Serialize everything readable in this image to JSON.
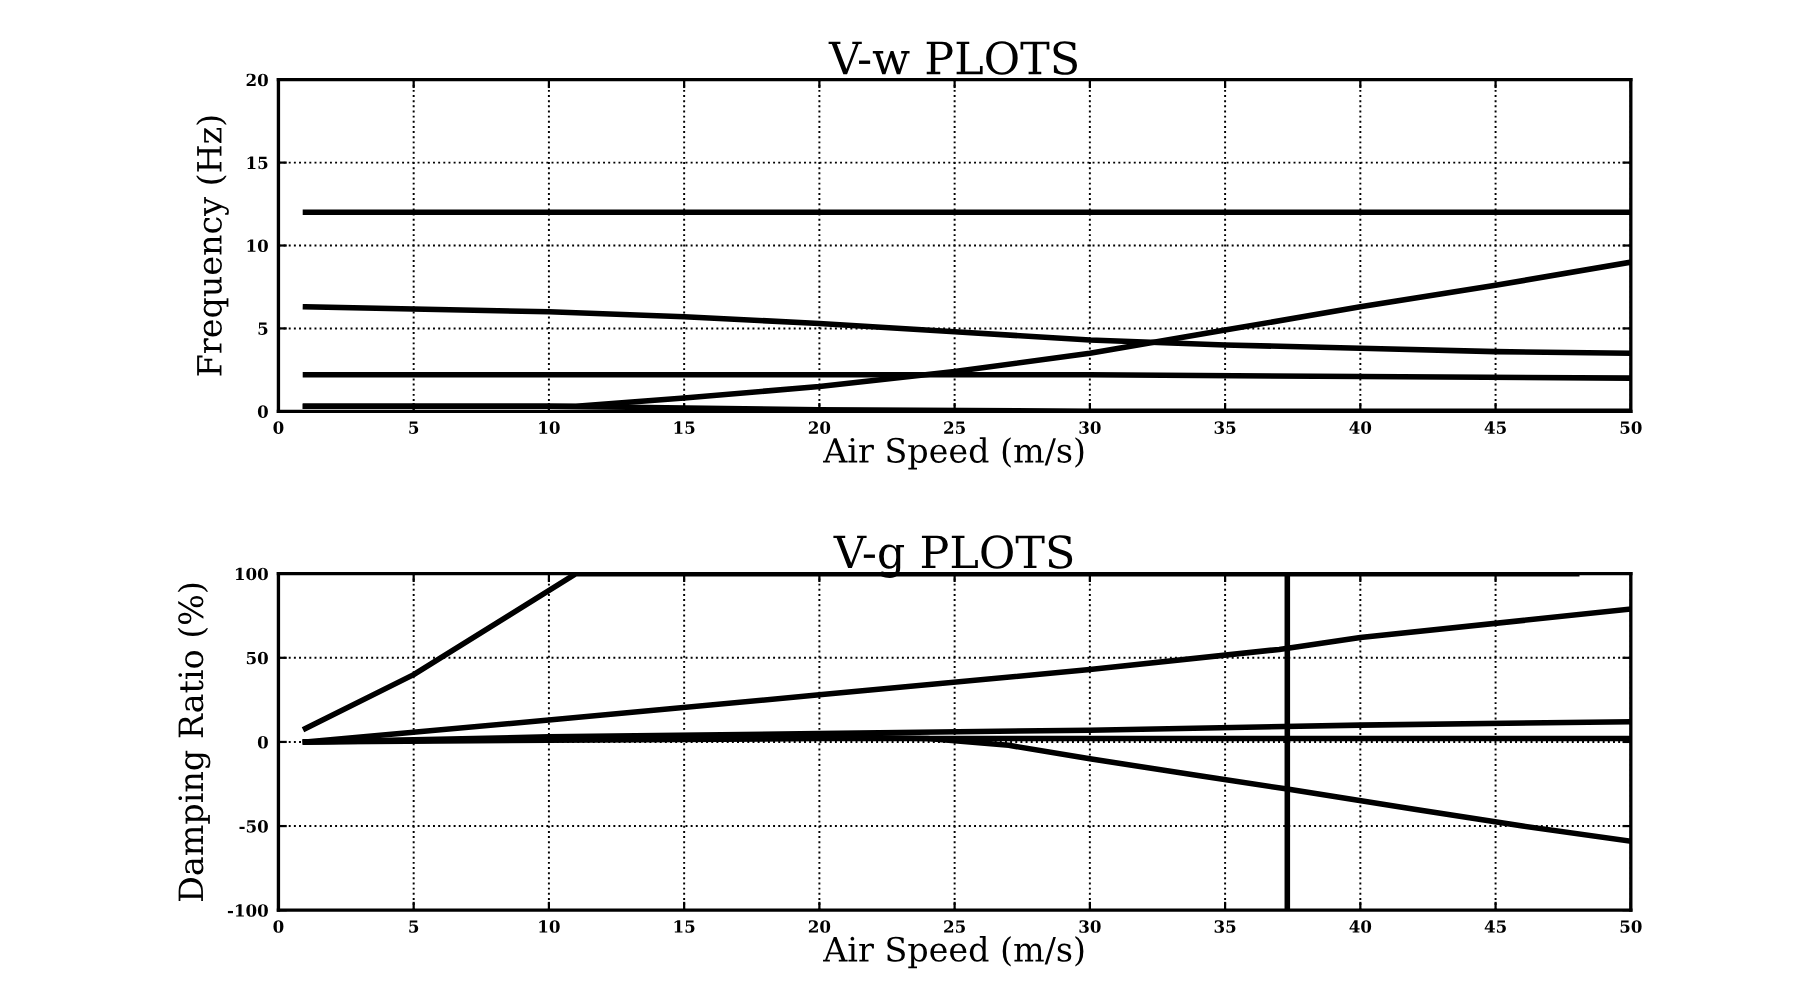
{
  "chart_data": [
    {
      "type": "line",
      "title": "V-w PLOTS",
      "xlabel": "Air Speed (m/s)",
      "ylabel": "Frequency (Hz)",
      "xlim": [
        0,
        50
      ],
      "ylim": [
        0,
        20
      ],
      "xticks": [
        0,
        5,
        10,
        15,
        20,
        25,
        30,
        35,
        40,
        45,
        50
      ],
      "yticks": [
        0,
        5,
        10,
        15,
        20
      ],
      "grid": true,
      "legend": false,
      "line_style": "solid",
      "series": [
        {
          "color": "#000000",
          "x": [
            1,
            50
          ],
          "values": [
            12,
            12
          ]
        },
        {
          "color": "#000000",
          "x": [
            1,
            10,
            15,
            20,
            25,
            30,
            35,
            40,
            45,
            50
          ],
          "values": [
            6.3,
            6.0,
            5.7,
            5.3,
            4.8,
            4.3,
            4.0,
            3.8,
            3.6,
            3.5
          ]
        },
        {
          "color": "#000000",
          "x": [
            1,
            30,
            40,
            50
          ],
          "values": [
            2.2,
            2.2,
            2.1,
            2.0
          ]
        },
        {
          "color": "#000000",
          "x": [
            1,
            11,
            15,
            20,
            25,
            30,
            35,
            40,
            45,
            50
          ],
          "values": [
            0.3,
            0.3,
            0.8,
            1.5,
            2.4,
            3.5,
            4.9,
            6.3,
            7.6,
            9.0
          ]
        },
        {
          "color": "#000000",
          "x": [
            1,
            10,
            20,
            30,
            50
          ],
          "values": [
            0.3,
            0.3,
            0.1,
            0,
            0
          ]
        }
      ]
    },
    {
      "type": "line",
      "title": "V-g PLOTS",
      "xlabel": "Air Speed (m/s)",
      "ylabel": "Damping Ratio (%)",
      "xlim": [
        0,
        50
      ],
      "ylim": [
        -100,
        100
      ],
      "xticks": [
        0,
        5,
        10,
        15,
        20,
        25,
        30,
        35,
        40,
        45,
        50
      ],
      "yticks": [
        -100,
        -50,
        0,
        50,
        100
      ],
      "grid": true,
      "legend": false,
      "line_style": "solid",
      "ref_lines": [
        {
          "axis": "x",
          "value": 37.3,
          "color": "#000000"
        }
      ],
      "series": [
        {
          "color": "#000000",
          "x": [
            1,
            5,
            11,
            48
          ],
          "values": [
            8,
            40,
            100,
            100
          ]
        },
        {
          "color": "#000000",
          "x": [
            1,
            10,
            20,
            30,
            37,
            40,
            50
          ],
          "values": [
            0,
            13,
            28,
            43,
            55,
            62,
            79
          ]
        },
        {
          "color": "#000000",
          "x": [
            1,
            10,
            20,
            30,
            40,
            50
          ],
          "values": [
            0,
            3,
            5,
            7,
            10,
            12
          ]
        },
        {
          "color": "#000000",
          "x": [
            1,
            10,
            20,
            50
          ],
          "values": [
            0,
            1,
            2,
            2
          ]
        },
        {
          "color": "#000000",
          "x": [
            1,
            10,
            20,
            24,
            27,
            30,
            34,
            37.3,
            42,
            46,
            50
          ],
          "values": [
            0,
            2,
            3,
            2,
            -2,
            -10,
            -20,
            -28,
            -40,
            -50,
            -59
          ]
        }
      ]
    }
  ]
}
